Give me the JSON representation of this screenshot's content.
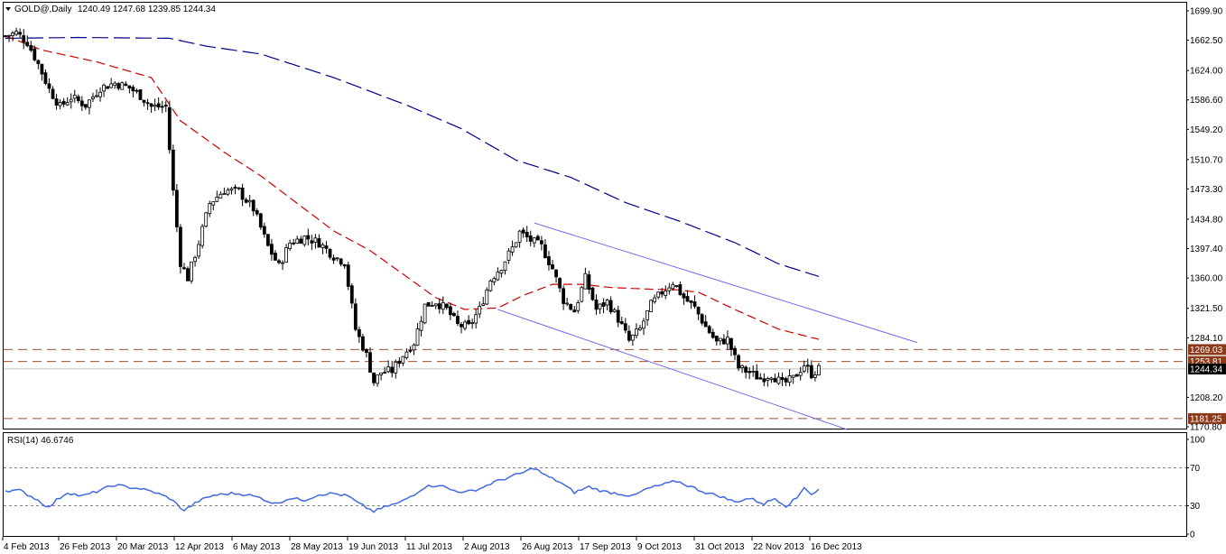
{
  "header": {
    "symbol": "GOLD@,Daily",
    "ohlc": "1240.49 1247.68 1239.85 1244.34",
    "menu_icon": "triangle-down-icon"
  },
  "rsi_header": {
    "label": "RSI(14) 46.6746"
  },
  "colors": {
    "candles": "#000000",
    "ma_short": "#cc0000",
    "ma_long": "#00008b",
    "channel": "#7b68ee",
    "level_lines": "#a0522d",
    "level_badge": "#8b3a1a",
    "current_badge": "#000000",
    "rsi_line": "#4169e1"
  },
  "chart_data": [
    {
      "type": "candlestick",
      "title": "GOLD@,Daily",
      "x_tick_labels": [
        "4 Feb 2013",
        "26 Feb 2013",
        "20 Mar 2013",
        "12 Apr 2013",
        "6 May 2013",
        "28 May 2013",
        "19 Jun 2013",
        "11 Jul 2013",
        "2 Aug 2013",
        "26 Aug 2013",
        "17 Sep 2013",
        "9 Oct 2013",
        "31 Oct 2013",
        "22 Nov 2013",
        "16 Dec 2013"
      ],
      "y_tick_labels": [
        "1699.90",
        "1662.50",
        "1624.00",
        "1586.60",
        "1549.20",
        "1510.70",
        "1473.30",
        "1434.80",
        "1397.40",
        "1360.00",
        "1321.50",
        "1284.10",
        "1208.20",
        "1170.80"
      ],
      "ylim": [
        1165,
        1705
      ],
      "price_anchors": [
        [
          0,
          1668
        ],
        [
          3,
          1672
        ],
        [
          6,
          1660
        ],
        [
          9,
          1632
        ],
        [
          12,
          1600
        ],
        [
          15,
          1578
        ],
        [
          18,
          1590
        ],
        [
          22,
          1580
        ],
        [
          26,
          1602
        ],
        [
          30,
          1608
        ],
        [
          34,
          1602
        ],
        [
          37,
          1592
        ],
        [
          40,
          1578
        ],
        [
          44,
          1578
        ],
        [
          46,
          1470
        ],
        [
          48,
          1380
        ],
        [
          50,
          1360
        ],
        [
          53,
          1405
        ],
        [
          56,
          1455
        ],
        [
          60,
          1472
        ],
        [
          64,
          1470
        ],
        [
          68,
          1448
        ],
        [
          72,
          1400
        ],
        [
          75,
          1375
        ],
        [
          78,
          1405
        ],
        [
          82,
          1412
        ],
        [
          86,
          1405
        ],
        [
          90,
          1388
        ],
        [
          93,
          1380
        ],
        [
          96,
          1295
        ],
        [
          99,
          1262
        ],
        [
          101,
          1228
        ],
        [
          103,
          1240
        ],
        [
          106,
          1242
        ],
        [
          109,
          1262
        ],
        [
          112,
          1278
        ],
        [
          115,
          1325
        ],
        [
          118,
          1330
        ],
        [
          121,
          1320
        ],
        [
          124,
          1300
        ],
        [
          127,
          1298
        ],
        [
          130,
          1320
        ],
        [
          133,
          1358
        ],
        [
          136,
          1375
        ],
        [
          139,
          1398
        ],
        [
          141,
          1418
        ],
        [
          144,
          1408
        ],
        [
          147,
          1400
        ],
        [
          150,
          1372
        ],
        [
          153,
          1332
        ],
        [
          156,
          1318
        ],
        [
          159,
          1360
        ],
        [
          162,
          1320
        ],
        [
          165,
          1330
        ],
        [
          168,
          1308
        ],
        [
          171,
          1280
        ],
        [
          174,
          1295
        ],
        [
          177,
          1326
        ],
        [
          180,
          1342
        ],
        [
          183,
          1355
        ],
        [
          186,
          1335
        ],
        [
          189,
          1322
        ],
        [
          192,
          1298
        ],
        [
          195,
          1278
        ],
        [
          198,
          1282
        ],
        [
          201,
          1246
        ],
        [
          204,
          1240
        ],
        [
          207,
          1232
        ],
        [
          210,
          1238
        ],
        [
          213,
          1225
        ],
        [
          216,
          1232
        ],
        [
          219,
          1250
        ],
        [
          221,
          1238
        ],
        [
          223,
          1244
        ]
      ],
      "ma_short": [
        [
          0,
          1668
        ],
        [
          10,
          1650
        ],
        [
          25,
          1635
        ],
        [
          40,
          1615
        ],
        [
          48,
          1560
        ],
        [
          60,
          1520
        ],
        [
          70,
          1490
        ],
        [
          80,
          1455
        ],
        [
          90,
          1420
        ],
        [
          100,
          1395
        ],
        [
          112,
          1355
        ],
        [
          118,
          1335
        ],
        [
          126,
          1320
        ],
        [
          135,
          1322
        ],
        [
          142,
          1338
        ],
        [
          150,
          1352
        ],
        [
          158,
          1352
        ],
        [
          166,
          1348
        ],
        [
          176,
          1346
        ],
        [
          184,
          1345
        ],
        [
          190,
          1342
        ],
        [
          200,
          1320
        ],
        [
          212,
          1295
        ],
        [
          223,
          1282
        ]
      ],
      "ma_long": [
        [
          0,
          1665
        ],
        [
          20,
          1666
        ],
        [
          45,
          1665
        ],
        [
          55,
          1655
        ],
        [
          70,
          1645
        ],
        [
          90,
          1615
        ],
        [
          110,
          1580
        ],
        [
          125,
          1550
        ],
        [
          140,
          1510
        ],
        [
          155,
          1488
        ],
        [
          170,
          1456
        ],
        [
          185,
          1432
        ],
        [
          200,
          1405
        ],
        [
          212,
          1378
        ],
        [
          223,
          1362
        ]
      ],
      "channel_upper": [
        [
          145,
          1430
        ],
        [
          250,
          1278
        ]
      ],
      "channel_lower": [
        [
          135,
          1320
        ],
        [
          231,
          1167
        ]
      ],
      "levels": [
        {
          "price": 1269.03,
          "label": "1269.03"
        },
        {
          "price": 1253.81,
          "label": "1253.81"
        },
        {
          "price": 1181.25,
          "label": "1181.25"
        }
      ],
      "current_price": {
        "price": 1244.34,
        "label": "1244.34"
      }
    },
    {
      "type": "line",
      "title": "RSI(14) 46.6746",
      "y_tick_labels": [
        "100",
        "70",
        "30",
        "0"
      ],
      "ylim": [
        0,
        100
      ],
      "reference_levels": [
        70,
        30
      ],
      "anchors": [
        [
          0,
          46
        ],
        [
          4,
          46
        ],
        [
          8,
          38
        ],
        [
          12,
          28
        ],
        [
          14,
          36
        ],
        [
          17,
          44
        ],
        [
          21,
          40
        ],
        [
          25,
          45
        ],
        [
          30,
          52
        ],
        [
          33,
          50
        ],
        [
          37,
          48
        ],
        [
          41,
          44
        ],
        [
          45,
          38
        ],
        [
          49,
          25
        ],
        [
          53,
          35
        ],
        [
          57,
          41
        ],
        [
          62,
          43
        ],
        [
          66,
          42
        ],
        [
          70,
          38
        ],
        [
          74,
          32
        ],
        [
          78,
          38
        ],
        [
          82,
          36
        ],
        [
          86,
          42
        ],
        [
          90,
          43
        ],
        [
          94,
          40
        ],
        [
          97,
          32
        ],
        [
          101,
          24
        ],
        [
          105,
          30
        ],
        [
          108,
          33
        ],
        [
          112,
          42
        ],
        [
          115,
          50
        ],
        [
          119,
          52
        ],
        [
          122,
          47
        ],
        [
          126,
          44
        ],
        [
          130,
          48
        ],
        [
          134,
          55
        ],
        [
          138,
          60
        ],
        [
          142,
          65
        ],
        [
          145,
          70
        ],
        [
          148,
          62
        ],
        [
          152,
          55
        ],
        [
          156,
          44
        ],
        [
          160,
          50
        ],
        [
          164,
          45
        ],
        [
          168,
          43
        ],
        [
          172,
          40
        ],
        [
          176,
          48
        ],
        [
          180,
          52
        ],
        [
          184,
          56
        ],
        [
          188,
          50
        ],
        [
          192,
          44
        ],
        [
          196,
          40
        ],
        [
          200,
          34
        ],
        [
          204,
          38
        ],
        [
          208,
          32
        ],
        [
          211,
          38
        ],
        [
          214,
          30
        ],
        [
          217,
          38
        ],
        [
          219,
          50
        ],
        [
          221,
          42
        ],
        [
          223,
          47
        ]
      ]
    }
  ]
}
